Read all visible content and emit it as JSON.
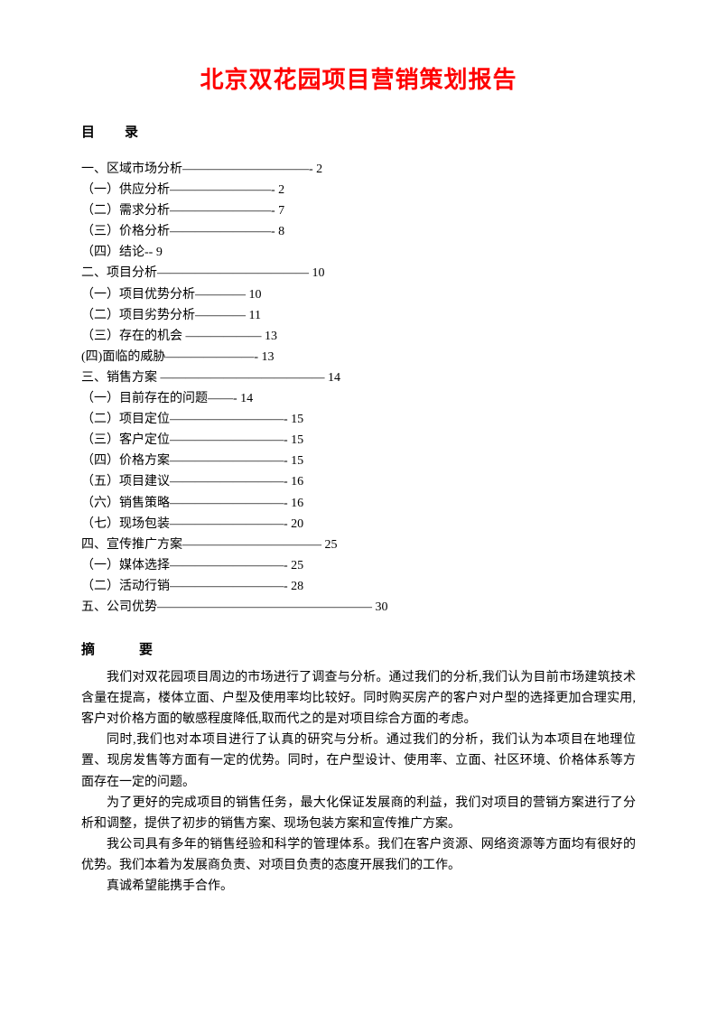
{
  "title": "北京双花园项目营销策划报告",
  "toc_heading": "目　　录",
  "toc": [
    "一、区域市场分析——————————- 2",
    "（一）供应分析————————- 2",
    "（二）需求分析————————- 7",
    "（三）价格分析————————- 8",
    "（四）结论-- 9",
    "二、项目分析———————————— 10",
    "（一）项目优势分析———— 10",
    "（二）项目劣势分析———— 11",
    "（三）存在的机会 —————— 13",
    "(四)面临的威胁———————- 13",
    "三、销售方案 ————————————— 14",
    "（一）目前存在的问题——- 14",
    "（二）项目定位—————————- 15",
    "（三）客户定位—————————- 15",
    "（四）价格方案—————————- 15",
    "（五）项目建议—————————- 16",
    "（六）销售策略—————————- 16",
    "（七）现场包装—————————- 20",
    "四、宣传推广方案——————————— 25",
    "（一）媒体选择—————————- 25",
    "（二）活动行销—————————- 28",
    "五、公司优势————————————————— 30"
  ],
  "abstract_heading": "摘　　　要",
  "abstract": [
    "我们对双花园项目周边的市场进行了调查与分析。通过我们的分析,我们认为目前市场建筑技术含量在提高，楼体立面、户型及使用率均比较好。同时购买房产的客户对户型的选择更加合理实用,客户对价格方面的敏感程度降低,取而代之的是对项目综合方面的考虑。",
    "同时,我们也对本项目进行了认真的研究与分析。通过我们的分析，我们认为本项目在地理位置、现房发售等方面有一定的优势。同时，在户型设计、使用率、立面、社区环境、价格体系等方面存在一定的问题。",
    "为了更好的完成项目的销售任务，最大化保证发展商的利益，我们对项目的营销方案进行了分析和调整，提供了初步的销售方案、现场包装方案和宣传推广方案。",
    "我公司具有多年的销售经验和科学的管理体系。我们在客户资源、网络资源等方面均有很好的优势。我们本着为发展商负责、对项目负责的态度开展我们的工作。",
    "真诚希望能携手合作。"
  ],
  "colors": {
    "title_color": "#ff0000",
    "text_color": "#000000",
    "background": "#ffffff"
  }
}
